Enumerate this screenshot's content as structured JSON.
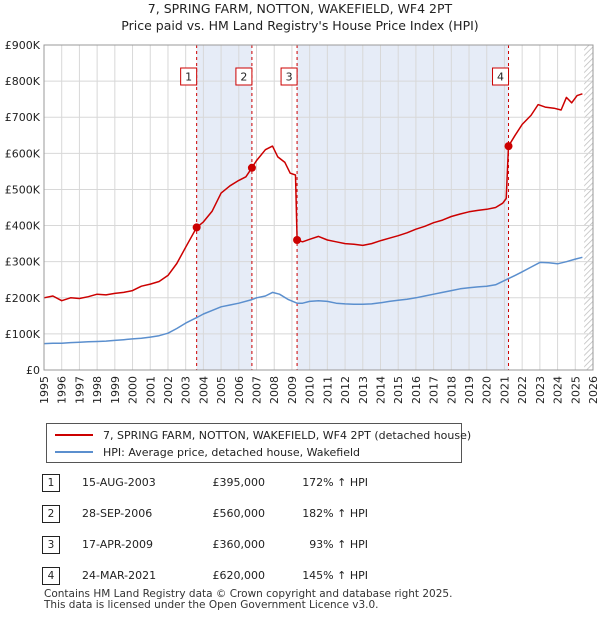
{
  "chart_data": {
    "type": "line",
    "title": "7, SPRING FARM, NOTTON, WAKEFIELD, WF4 2PT",
    "subtitle": "Price paid vs. HM Land Registry's House Price Index (HPI)",
    "xlabel": "",
    "ylabel": "",
    "xlim": [
      1995,
      2026
    ],
    "ylim": [
      0,
      900000
    ],
    "grid": true,
    "legend_position": "below",
    "y_ticks": [
      {
        "value": 0,
        "label": "£0"
      },
      {
        "value": 100000,
        "label": "£100K"
      },
      {
        "value": 200000,
        "label": "£200K"
      },
      {
        "value": 300000,
        "label": "£300K"
      },
      {
        "value": 400000,
        "label": "£400K"
      },
      {
        "value": 500000,
        "label": "£500K"
      },
      {
        "value": 600000,
        "label": "£600K"
      },
      {
        "value": 700000,
        "label": "£700K"
      },
      {
        "value": 800000,
        "label": "£800K"
      },
      {
        "value": 900000,
        "label": "£900K"
      }
    ],
    "x_ticks": [
      "1995",
      "1996",
      "1997",
      "1998",
      "1999",
      "2000",
      "2001",
      "2002",
      "2003",
      "2004",
      "2005",
      "2006",
      "2007",
      "2008",
      "2009",
      "2010",
      "2011",
      "2012",
      "2013",
      "2014",
      "2015",
      "2016",
      "2017",
      "2018",
      "2019",
      "2020",
      "2021",
      "2022",
      "2023",
      "2024",
      "2025",
      "2026"
    ],
    "shaded_ranges": [
      {
        "from": 2003.62,
        "to": 2006.74
      },
      {
        "from": 2009.29,
        "to": 2021.23
      }
    ],
    "hatched_from": 2025.5,
    "series": [
      {
        "name": "7, SPRING FARM, NOTTON, WAKEFIELD, WF4 2PT (detached house)",
        "color": "#cc0000",
        "points": [
          [
            1995.0,
            200000
          ],
          [
            1995.5,
            205000
          ],
          [
            1996.0,
            192000
          ],
          [
            1996.5,
            200000
          ],
          [
            1997.0,
            198000
          ],
          [
            1997.5,
            203000
          ],
          [
            1998.0,
            210000
          ],
          [
            1998.5,
            208000
          ],
          [
            1999.0,
            212000
          ],
          [
            1999.5,
            215000
          ],
          [
            2000.0,
            220000
          ],
          [
            2000.5,
            232000
          ],
          [
            2001.0,
            238000
          ],
          [
            2001.5,
            245000
          ],
          [
            2002.0,
            262000
          ],
          [
            2002.5,
            295000
          ],
          [
            2003.0,
            340000
          ],
          [
            2003.62,
            395000
          ],
          [
            2004.0,
            410000
          ],
          [
            2004.5,
            440000
          ],
          [
            2005.0,
            490000
          ],
          [
            2005.5,
            510000
          ],
          [
            2006.0,
            525000
          ],
          [
            2006.4,
            535000
          ],
          [
            2006.74,
            560000
          ],
          [
            2007.0,
            580000
          ],
          [
            2007.5,
            610000
          ],
          [
            2007.9,
            620000
          ],
          [
            2008.2,
            590000
          ],
          [
            2008.6,
            575000
          ],
          [
            2008.9,
            545000
          ],
          [
            2009.2,
            540000
          ],
          [
            2009.29,
            360000
          ],
          [
            2009.6,
            355000
          ],
          [
            2010.0,
            362000
          ],
          [
            2010.5,
            370000
          ],
          [
            2011.0,
            360000
          ],
          [
            2011.5,
            355000
          ],
          [
            2012.0,
            350000
          ],
          [
            2012.5,
            348000
          ],
          [
            2013.0,
            345000
          ],
          [
            2013.5,
            350000
          ],
          [
            2014.0,
            358000
          ],
          [
            2014.5,
            365000
          ],
          [
            2015.0,
            372000
          ],
          [
            2015.5,
            380000
          ],
          [
            2016.0,
            390000
          ],
          [
            2016.5,
            398000
          ],
          [
            2017.0,
            408000
          ],
          [
            2017.5,
            415000
          ],
          [
            2018.0,
            425000
          ],
          [
            2018.5,
            432000
          ],
          [
            2019.0,
            438000
          ],
          [
            2019.5,
            442000
          ],
          [
            2020.0,
            445000
          ],
          [
            2020.5,
            450000
          ],
          [
            2020.9,
            462000
          ],
          [
            2021.1,
            475000
          ],
          [
            2021.23,
            620000
          ],
          [
            2021.6,
            650000
          ],
          [
            2022.0,
            680000
          ],
          [
            2022.5,
            705000
          ],
          [
            2022.9,
            735000
          ],
          [
            2023.3,
            728000
          ],
          [
            2023.8,
            725000
          ],
          [
            2024.2,
            720000
          ],
          [
            2024.5,
            755000
          ],
          [
            2024.8,
            740000
          ],
          [
            2025.1,
            760000
          ],
          [
            2025.4,
            765000
          ]
        ]
      },
      {
        "name": "HPI: Average price, detached house, Wakefield",
        "color": "#5b8fce",
        "points": [
          [
            1995.0,
            73000
          ],
          [
            1995.5,
            74000
          ],
          [
            1996.0,
            74000
          ],
          [
            1996.5,
            76000
          ],
          [
            1997.0,
            77000
          ],
          [
            1997.5,
            78000
          ],
          [
            1998.0,
            79000
          ],
          [
            1998.5,
            80000
          ],
          [
            1999.0,
            82000
          ],
          [
            1999.5,
            84000
          ],
          [
            2000.0,
            86000
          ],
          [
            2000.5,
            88000
          ],
          [
            2001.0,
            91000
          ],
          [
            2001.5,
            95000
          ],
          [
            2002.0,
            102000
          ],
          [
            2002.5,
            115000
          ],
          [
            2003.0,
            130000
          ],
          [
            2003.62,
            145000
          ],
          [
            2004.0,
            155000
          ],
          [
            2004.5,
            165000
          ],
          [
            2005.0,
            175000
          ],
          [
            2005.5,
            180000
          ],
          [
            2006.0,
            185000
          ],
          [
            2006.74,
            195000
          ],
          [
            2007.0,
            200000
          ],
          [
            2007.5,
            205000
          ],
          [
            2007.9,
            215000
          ],
          [
            2008.3,
            210000
          ],
          [
            2008.8,
            195000
          ],
          [
            2009.29,
            185000
          ],
          [
            2009.6,
            185000
          ],
          [
            2010.0,
            190000
          ],
          [
            2010.5,
            192000
          ],
          [
            2011.0,
            190000
          ],
          [
            2011.5,
            185000
          ],
          [
            2012.0,
            183000
          ],
          [
            2012.5,
            182000
          ],
          [
            2013.0,
            182000
          ],
          [
            2013.5,
            183000
          ],
          [
            2014.0,
            186000
          ],
          [
            2014.5,
            190000
          ],
          [
            2015.0,
            193000
          ],
          [
            2015.5,
            196000
          ],
          [
            2016.0,
            200000
          ],
          [
            2016.5,
            205000
          ],
          [
            2017.0,
            210000
          ],
          [
            2017.5,
            215000
          ],
          [
            2018.0,
            220000
          ],
          [
            2018.5,
            225000
          ],
          [
            2019.0,
            228000
          ],
          [
            2019.5,
            230000
          ],
          [
            2020.0,
            232000
          ],
          [
            2020.5,
            236000
          ],
          [
            2021.23,
            253000
          ],
          [
            2021.6,
            262000
          ],
          [
            2022.0,
            272000
          ],
          [
            2022.5,
            285000
          ],
          [
            2023.0,
            298000
          ],
          [
            2023.5,
            297000
          ],
          [
            2024.0,
            294000
          ],
          [
            2024.5,
            300000
          ],
          [
            2025.0,
            307000
          ],
          [
            2025.4,
            312000
          ]
        ]
      }
    ],
    "markers": [
      {
        "id": "1",
        "x": 2003.62,
        "y": 395000
      },
      {
        "id": "2",
        "x": 2006.74,
        "y": 560000
      },
      {
        "id": "3",
        "x": 2009.29,
        "y": 360000
      },
      {
        "id": "4",
        "x": 2021.23,
        "y": 620000
      }
    ]
  },
  "legend": {
    "items": [
      {
        "label": "7, SPRING FARM, NOTTON, WAKEFIELD, WF4 2PT (detached house)",
        "color": "#cc0000"
      },
      {
        "label": "HPI: Average price, detached house, Wakefield",
        "color": "#5b8fce"
      }
    ]
  },
  "sales": [
    {
      "id": "1",
      "date": "15-AUG-2003",
      "price": "£395,000",
      "hpi": "172% ↑ HPI"
    },
    {
      "id": "2",
      "date": "28-SEP-2006",
      "price": "£560,000",
      "hpi": "182% ↑ HPI"
    },
    {
      "id": "3",
      "date": "17-APR-2009",
      "price": "£360,000",
      "hpi": "93% ↑ HPI"
    },
    {
      "id": "4",
      "date": "24-MAR-2021",
      "price": "£620,000",
      "hpi": "145% ↑ HPI"
    }
  ],
  "footer": {
    "line1": "Contains HM Land Registry data © Crown copyright and database right 2025.",
    "line2": "This data is licensed under the Open Government Licence v3.0."
  }
}
